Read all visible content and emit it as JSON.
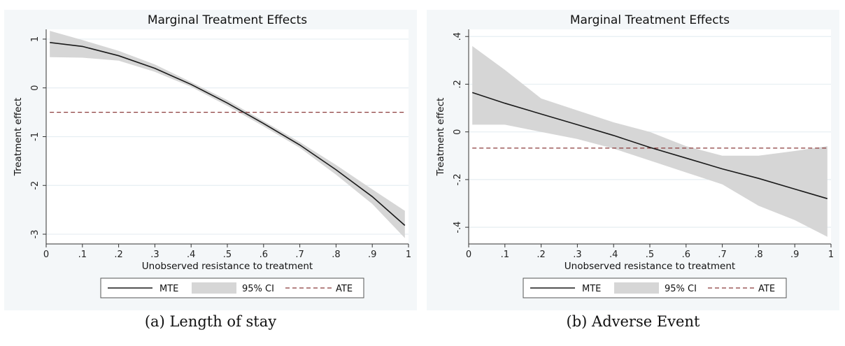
{
  "chart_data": [
    {
      "type": "line",
      "title": "Marginal Treatment Effects",
      "xlabel": "Unobserved resistance to treatment",
      "ylabel": "Treatment effect",
      "xlim": [
        0,
        1
      ],
      "ylim": [
        -3.2,
        1.2
      ],
      "xticks": [
        0,
        0.1,
        0.2,
        0.3,
        0.4,
        0.5,
        0.6,
        0.7,
        0.8,
        0.9,
        1
      ],
      "xticklabels": [
        "0",
        ".1",
        ".2",
        ".3",
        ".4",
        ".5",
        ".6",
        ".7",
        ".8",
        ".9",
        "1"
      ],
      "yticks": [
        1,
        0,
        -1,
        -2,
        -3
      ],
      "yticklabels": [
        "1",
        "0",
        "-1",
        "-2",
        "-3"
      ],
      "grid": "horizontal",
      "legend_position": "bottom",
      "legend": [
        "MTE",
        "95% CI",
        "ATE"
      ],
      "x": [
        0.01,
        0.1,
        0.2,
        0.3,
        0.4,
        0.5,
        0.6,
        0.7,
        0.8,
        0.9,
        0.99
      ],
      "series": [
        {
          "name": "MTE",
          "values": [
            0.93,
            0.85,
            0.66,
            0.4,
            0.07,
            -0.31,
            -0.73,
            -1.17,
            -1.68,
            -2.23,
            -2.82
          ]
        },
        {
          "name": "95% CI",
          "lower": [
            0.63,
            0.62,
            0.56,
            0.33,
            0.02,
            -0.37,
            -0.79,
            -1.23,
            -1.78,
            -2.38,
            -3.08
          ],
          "upper": [
            1.17,
            0.98,
            0.76,
            0.48,
            0.12,
            -0.25,
            -0.68,
            -1.11,
            -1.58,
            -2.08,
            -2.52
          ]
        },
        {
          "name": "ATE",
          "value": -0.5
        }
      ],
      "caption": "(a) Length of stay"
    },
    {
      "type": "line",
      "title": "Marginal Treatment Effects",
      "xlabel": "Unobserved resistance to treatment",
      "ylabel": "Treatment effect",
      "xlim": [
        0,
        1
      ],
      "ylim": [
        -0.47,
        0.43
      ],
      "xticks": [
        0,
        0.1,
        0.2,
        0.3,
        0.4,
        0.5,
        0.6,
        0.7,
        0.8,
        0.9,
        1
      ],
      "xticklabels": [
        "0",
        ".1",
        ".2",
        ".3",
        ".4",
        ".5",
        ".6",
        ".7",
        ".8",
        ".9",
        "1"
      ],
      "yticks": [
        0.4,
        0.2,
        0,
        -0.2,
        -0.4
      ],
      "yticklabels": [
        ".4",
        ".2",
        "0",
        "-.2",
        "-.4"
      ],
      "grid": "horizontal",
      "legend_position": "bottom",
      "legend": [
        "MTE",
        "95% CI",
        "ATE"
      ],
      "x": [
        0.01,
        0.1,
        0.2,
        0.3,
        0.4,
        0.5,
        0.6,
        0.7,
        0.8,
        0.9,
        0.99
      ],
      "series": [
        {
          "name": "MTE",
          "values": [
            0.165,
            0.12,
            0.075,
            0.03,
            -0.015,
            -0.065,
            -0.11,
            -0.155,
            -0.195,
            -0.24,
            -0.28
          ]
        },
        {
          "name": "95% CI",
          "lower": [
            0.03,
            0.03,
            0.0,
            -0.03,
            -0.07,
            -0.12,
            -0.17,
            -0.22,
            -0.31,
            -0.37,
            -0.44
          ]
        },
        {
          "name": "95% CI upper",
          "upper": [
            0.36,
            0.26,
            0.14,
            0.09,
            0.04,
            0.0,
            -0.06,
            -0.1,
            -0.1,
            -0.08,
            -0.06
          ]
        },
        {
          "name": "ATE",
          "value": -0.068
        }
      ],
      "caption": "(b) Adverse Event"
    }
  ],
  "colors": {
    "mte_line": "#1a1a1a",
    "ci_fill": "#d6d6d6",
    "ate_line": "#8b3a3a",
    "grid": "#e6eef2",
    "frame_bg": "#f4f7f9"
  }
}
